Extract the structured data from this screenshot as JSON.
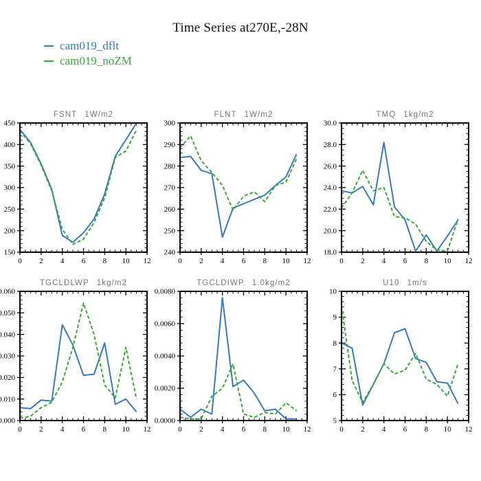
{
  "title": "Time Series at270E,-28N",
  "legend": {
    "items": [
      {
        "label": "cam019_dflt",
        "color": "#3878bd",
        "style": "solid"
      },
      {
        "label": "cam019_noZM",
        "color": "#39a839",
        "style": "dashed"
      }
    ]
  },
  "colors": {
    "frame": "#000000",
    "subplot_title": "#757575",
    "background": "#ffffff"
  },
  "chart_data": [
    {
      "type": "line",
      "id": "fsnt",
      "title": "FSNT",
      "units": "1W/m2",
      "x": [
        0,
        1,
        2,
        3,
        4,
        5,
        6,
        7,
        8,
        9,
        10,
        11
      ],
      "xlim": [
        0,
        12
      ],
      "xticks": [
        0,
        2,
        4,
        6,
        8,
        10,
        12
      ],
      "xtick_labels": [
        "0",
        "2",
        "4",
        "6",
        "8",
        "10",
        "12"
      ],
      "minor_x_step": 0.5,
      "ylim": [
        150,
        450
      ],
      "yticks": [
        150,
        200,
        250,
        300,
        350,
        400,
        450
      ],
      "ytick_labels": [
        "150",
        "200",
        "250",
        "300",
        "350",
        "400",
        "450"
      ],
      "minor_y_step": 10,
      "grid": false,
      "series": [
        {
          "name": "cam019_dflt",
          "values": [
            435,
            405,
            355,
            296,
            189,
            173,
            195,
            227,
            285,
            373,
            411,
            450
          ]
        },
        {
          "name": "cam019_noZM",
          "values": [
            432,
            402,
            352,
            293,
            203,
            168,
            180,
            219,
            276,
            370,
            385,
            434
          ]
        }
      ]
    },
    {
      "type": "line",
      "id": "flnt",
      "title": "FLNT",
      "units": "1W/m2",
      "x": [
        0,
        1,
        2,
        3,
        4,
        5,
        6,
        7,
        8,
        9,
        10,
        11
      ],
      "xlim": [
        0,
        12
      ],
      "xticks": [
        0,
        2,
        4,
        6,
        8,
        10,
        12
      ],
      "xtick_labels": [
        "0",
        "2",
        "4",
        "6",
        "8",
        "10",
        "12"
      ],
      "minor_x_step": 0.5,
      "ylim": [
        240,
        300
      ],
      "yticks": [
        240,
        250,
        260,
        270,
        280,
        290,
        300
      ],
      "ytick_labels": [
        "240",
        "250",
        "260",
        "270",
        "280",
        "290",
        "300"
      ],
      "minor_y_step": 2,
      "grid": false,
      "series": [
        {
          "name": "cam019_dflt",
          "values": [
            284,
            284.5,
            278,
            276.5,
            247,
            260.5,
            262.5,
            264.5,
            266.5,
            271,
            275,
            285.5
          ]
        },
        {
          "name": "cam019_noZM",
          "values": [
            288.5,
            294,
            282.5,
            277,
            271,
            259.5,
            266,
            268,
            263.5,
            271,
            272.5,
            283.5
          ]
        }
      ]
    },
    {
      "type": "line",
      "id": "tmq",
      "title": "TMQ",
      "units": "1kg/m2",
      "x": [
        0,
        1,
        2,
        3,
        4,
        5,
        6,
        7,
        8,
        9,
        10,
        11
      ],
      "xlim": [
        0,
        12
      ],
      "xticks": [
        0,
        2,
        4,
        6,
        8,
        10,
        12
      ],
      "xtick_labels": [
        "0",
        "2",
        "4",
        "6",
        "8",
        "10",
        "12"
      ],
      "minor_x_step": 0.5,
      "ylim": [
        18,
        30
      ],
      "yticks": [
        18,
        20,
        22,
        24,
        26,
        28,
        30
      ],
      "ytick_labels": [
        "18.0",
        "20.0",
        "22.0",
        "24.0",
        "26.0",
        "28.0",
        "30.0"
      ],
      "minor_y_step": 0.5,
      "grid": false,
      "series": [
        {
          "name": "cam019_dflt",
          "values": [
            23.7,
            23.5,
            24.1,
            22.4,
            28.2,
            22.2,
            21.0,
            18.1,
            19.6,
            18.1,
            19.5,
            21.0
          ]
        },
        {
          "name": "cam019_noZM",
          "values": [
            22.1,
            23.5,
            25.6,
            23.7,
            24.0,
            21.3,
            21.2,
            20.6,
            19.0,
            18.2,
            18.1,
            21.1
          ]
        }
      ]
    },
    {
      "type": "line",
      "id": "tgcldlwp",
      "title": "TGCLDLWP",
      "units": "1kg/m2",
      "x": [
        0,
        1,
        2,
        3,
        4,
        5,
        6,
        7,
        8,
        9,
        10,
        11
      ],
      "xlim": [
        0,
        12
      ],
      "xticks": [
        0,
        2,
        4,
        6,
        8,
        10,
        12
      ],
      "xtick_labels": [
        "0",
        "2",
        "4",
        "6",
        "8",
        "10",
        "12"
      ],
      "minor_x_step": 0.5,
      "ylim": [
        0,
        0.06
      ],
      "yticks": [
        0,
        0.01,
        0.02,
        0.03,
        0.04,
        0.05,
        0.06
      ],
      "ytick_labels": [
        "0.000",
        "0.010",
        "0.020",
        "0.030",
        "0.040",
        "0.050",
        "0.060"
      ],
      "minor_y_step": 0.002,
      "grid": false,
      "series": [
        {
          "name": "cam019_dflt",
          "values": [
            0.006,
            0.0055,
            0.0095,
            0.009,
            0.0445,
            0.035,
            0.021,
            0.0215,
            0.036,
            0.0075,
            0.01,
            0.004
          ]
        },
        {
          "name": "cam019_noZM",
          "values": [
            0.001,
            0.002,
            0.006,
            0.0085,
            0.018,
            0.034,
            0.0545,
            0.04,
            0.0165,
            0.0105,
            0.034,
            0.01
          ]
        }
      ]
    },
    {
      "type": "line",
      "id": "tgcldiwp",
      "title": "TGCLDIWP",
      "units": "1.0kg/m2",
      "x": [
        0,
        1,
        2,
        3,
        4,
        5,
        6,
        7,
        8,
        9,
        10,
        11
      ],
      "xlim": [
        0,
        12
      ],
      "xticks": [
        0,
        2,
        4,
        6,
        8,
        10,
        12
      ],
      "xtick_labels": [
        "0",
        "2",
        "4",
        "6",
        "8",
        "10",
        "12"
      ],
      "minor_x_step": 0.5,
      "ylim": [
        0,
        0.008
      ],
      "yticks": [
        0,
        0.002,
        0.004,
        0.006,
        0.008
      ],
      "ytick_labels": [
        "0.0000",
        "0.0020",
        "0.0040",
        "0.0060",
        "0.0080"
      ],
      "minor_y_step": 0.0004,
      "grid": false,
      "series": [
        {
          "name": "cam019_dflt",
          "values": [
            0.0007,
            0.0002,
            0.0007,
            0.0004,
            0.0076,
            0.0021,
            0.0025,
            0.0017,
            0.0006,
            0.0007,
            0.0001,
            0.0001
          ]
        },
        {
          "name": "cam019_noZM",
          "values": [
            0.0002,
            0.0001,
            0.0001,
            0.0015,
            0.002,
            0.0035,
            0.0004,
            0.0002,
            0.0005,
            0.0004,
            0.0011,
            0.0006
          ]
        }
      ]
    },
    {
      "type": "line",
      "id": "u10",
      "title": "U10",
      "units": "1m/s",
      "x": [
        0,
        1,
        2,
        3,
        4,
        5,
        6,
        7,
        8,
        9,
        10,
        11
      ],
      "xlim": [
        0,
        12
      ],
      "xticks": [
        0,
        2,
        4,
        6,
        8,
        10,
        12
      ],
      "xtick_labels": [
        "0",
        "2",
        "4",
        "6",
        "8",
        "10",
        "12"
      ],
      "minor_x_step": 0.5,
      "ylim": [
        5,
        10
      ],
      "yticks": [
        5,
        6,
        7,
        8,
        9,
        10
      ],
      "ytick_labels": [
        "5",
        "6",
        "7",
        "8",
        "9",
        "10"
      ],
      "minor_y_step": 0.2,
      "grid": false,
      "series": [
        {
          "name": "cam019_dflt",
          "values": [
            8.0,
            7.8,
            5.6,
            6.4,
            7.2,
            8.4,
            8.55,
            7.4,
            7.25,
            6.5,
            6.45,
            5.65
          ]
        },
        {
          "name": "cam019_noZM",
          "values": [
            9.45,
            6.55,
            5.7,
            6.4,
            7.2,
            6.8,
            6.95,
            7.6,
            6.6,
            6.4,
            5.95,
            7.2
          ]
        }
      ]
    }
  ]
}
